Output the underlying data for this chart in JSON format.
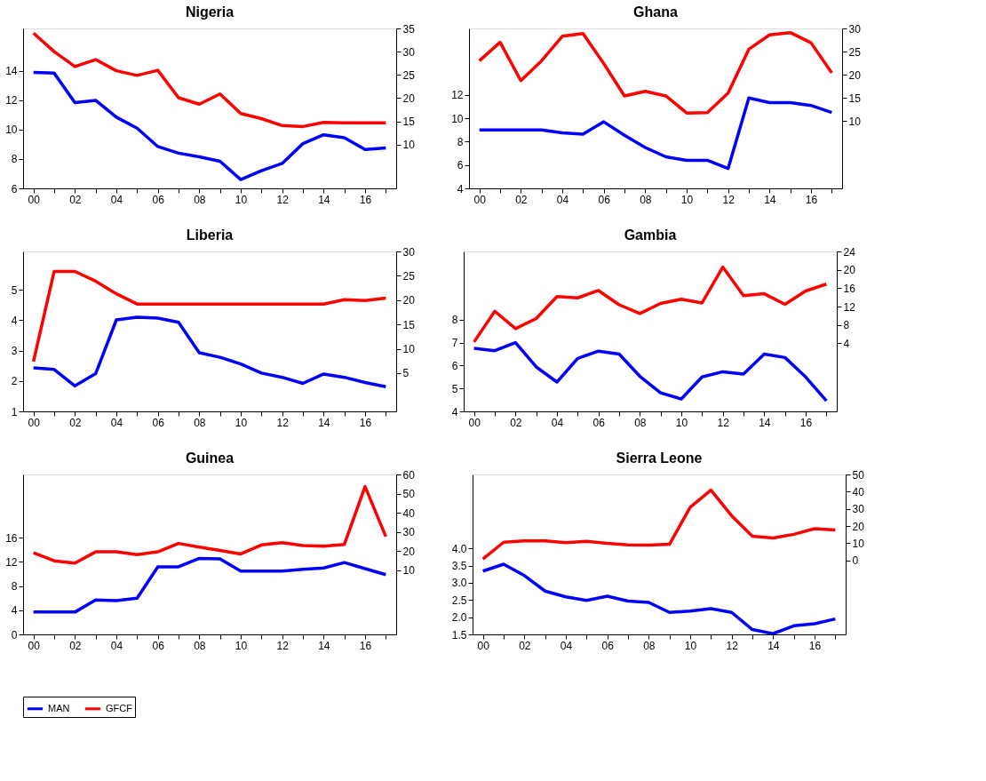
{
  "chart_data": [
    {
      "type": "line",
      "title": "Nigeria",
      "legend": "bottom",
      "grid": false,
      "x": [
        2000,
        2001,
        2002,
        2003,
        2004,
        2005,
        2006,
        2007,
        2008,
        2009,
        2010,
        2011,
        2012,
        2013,
        2014,
        2015,
        2016,
        2017
      ],
      "xlim": [
        1999.5,
        2017.5
      ],
      "xticks": [
        {
          "value": 2000,
          "label": "00"
        },
        {
          "value": 2001,
          "label": null
        },
        {
          "value": 2002,
          "label": "02"
        },
        {
          "value": 2003,
          "label": null
        },
        {
          "value": 2004,
          "label": "04"
        },
        {
          "value": 2005,
          "label": null
        },
        {
          "value": 2006,
          "label": "06"
        },
        {
          "value": 2007,
          "label": null
        },
        {
          "value": 2008,
          "label": "08"
        },
        {
          "value": 2009,
          "label": null
        },
        {
          "value": 2010,
          "label": "10"
        },
        {
          "value": 2011,
          "label": null
        },
        {
          "value": 2012,
          "label": "12"
        },
        {
          "value": 2013,
          "label": null
        },
        {
          "value": 2014,
          "label": "14"
        },
        {
          "value": 2015,
          "label": null
        },
        {
          "value": 2016,
          "label": "16"
        },
        {
          "value": 2017,
          "label": null
        }
      ],
      "ylim": [
        6,
        16.9
      ],
      "yticks": [
        6,
        8,
        10,
        12,
        14
      ],
      "y2lim": [
        0.6,
        35
      ],
      "y2ticks": [
        10,
        15,
        20,
        25,
        30,
        35
      ],
      "series": [
        {
          "name": "MAN",
          "color": "#0000ff",
          "values": [
            13.9,
            13.85,
            11.85,
            12.0,
            10.85,
            10.1,
            8.85,
            8.4,
            8.15,
            7.85,
            6.6,
            7.2,
            7.7,
            9.05,
            9.65,
            9.45,
            8.65,
            8.75
          ]
        },
        {
          "name": "GFCF",
          "color": "#ff0000",
          "axis": "y2",
          "values": [
            34.0,
            30.0,
            26.8,
            28.3,
            25.9,
            24.9,
            26.0,
            20.1,
            18.7,
            20.9,
            16.7,
            15.6,
            14.1,
            13.9,
            14.8,
            14.7,
            14.7,
            14.7
          ]
        }
      ]
    },
    {
      "type": "line",
      "title": "Ghana",
      "legend": "bottom",
      "grid": false,
      "x": [
        2000,
        2001,
        2002,
        2003,
        2004,
        2005,
        2006,
        2007,
        2008,
        2009,
        2010,
        2011,
        2012,
        2013,
        2014,
        2015,
        2016,
        2017
      ],
      "xlim": [
        1999.5,
        2017.5
      ],
      "xticks": [
        {
          "value": 2000,
          "label": "00"
        },
        {
          "value": 2001,
          "label": null
        },
        {
          "value": 2002,
          "label": "02"
        },
        {
          "value": 2003,
          "label": null
        },
        {
          "value": 2004,
          "label": "04"
        },
        {
          "value": 2005,
          "label": null
        },
        {
          "value": 2006,
          "label": "06"
        },
        {
          "value": 2007,
          "label": null
        },
        {
          "value": 2008,
          "label": "08"
        },
        {
          "value": 2009,
          "label": null
        },
        {
          "value": 2010,
          "label": "10"
        },
        {
          "value": 2011,
          "label": null
        },
        {
          "value": 2012,
          "label": "12"
        },
        {
          "value": 2013,
          "label": null
        },
        {
          "value": 2014,
          "label": "14"
        },
        {
          "value": 2015,
          "label": null
        },
        {
          "value": 2016,
          "label": "16"
        },
        {
          "value": 2017,
          "label": null
        }
      ],
      "ylim": [
        4,
        17.7
      ],
      "yticks": [
        4,
        6,
        8,
        10,
        12
      ],
      "y2lim": [
        -4.6,
        30
      ],
      "y2ticks": [
        10,
        15,
        20,
        25,
        30
      ],
      "series": [
        {
          "name": "MAN",
          "color": "#0000ff",
          "values": [
            9.0,
            9.0,
            9.0,
            9.0,
            8.75,
            8.65,
            9.7,
            8.55,
            7.5,
            6.7,
            6.4,
            6.4,
            5.7,
            11.75,
            11.35,
            11.35,
            11.1,
            10.5
          ]
        },
        {
          "name": "GFCF",
          "color": "#ff0000",
          "axis": "y2",
          "values": [
            23.0,
            27.0,
            18.7,
            23.0,
            28.3,
            28.9,
            22.4,
            15.4,
            16.4,
            15.4,
            11.7,
            11.8,
            16.0,
            25.5,
            28.6,
            29.1,
            26.9,
            20.4
          ]
        }
      ]
    },
    {
      "type": "line",
      "title": "Liberia",
      "legend": "bottom",
      "grid": false,
      "x": [
        2000,
        2001,
        2002,
        2003,
        2004,
        2005,
        2006,
        2007,
        2008,
        2009,
        2010,
        2011,
        2012,
        2013,
        2014,
        2015,
        2016,
        2017
      ],
      "xlim": [
        1999.5,
        2017.5
      ],
      "xticks": [
        {
          "value": 2000,
          "label": "00"
        },
        {
          "value": 2001,
          "label": null
        },
        {
          "value": 2002,
          "label": "02"
        },
        {
          "value": 2003,
          "label": null
        },
        {
          "value": 2004,
          "label": "04"
        },
        {
          "value": 2005,
          "label": null
        },
        {
          "value": 2006,
          "label": "06"
        },
        {
          "value": 2007,
          "label": null
        },
        {
          "value": 2008,
          "label": "08"
        },
        {
          "value": 2009,
          "label": null
        },
        {
          "value": 2010,
          "label": "10"
        },
        {
          "value": 2011,
          "label": null
        },
        {
          "value": 2012,
          "label": "12"
        },
        {
          "value": 2013,
          "label": null
        },
        {
          "value": 2014,
          "label": "14"
        },
        {
          "value": 2015,
          "label": null
        },
        {
          "value": 2016,
          "label": "16"
        },
        {
          "value": 2017,
          "label": null
        }
      ],
      "ylim": [
        1,
        6.26
      ],
      "yticks": [
        1,
        2,
        3,
        4,
        5
      ],
      "y2lim": [
        -2.85,
        30
      ],
      "y2ticks": [
        5,
        10,
        15,
        20,
        25,
        30
      ],
      "series": [
        {
          "name": "MAN",
          "color": "#0000ff",
          "values": [
            2.43,
            2.38,
            1.84,
            2.24,
            4.01,
            4.1,
            4.07,
            3.93,
            2.93,
            2.78,
            2.56,
            2.26,
            2.12,
            1.92,
            2.23,
            2.12,
            1.95,
            1.81
          ]
        },
        {
          "name": "GFCF",
          "color": "#ff0000",
          "axis": "y2",
          "values": [
            7.4,
            25.9,
            25.9,
            23.9,
            21.3,
            19.2,
            19.2,
            19.2,
            19.2,
            19.2,
            19.2,
            19.2,
            19.2,
            19.2,
            19.2,
            20.1,
            19.9,
            20.4
          ]
        }
      ]
    },
    {
      "type": "line",
      "title": "Gambia",
      "legend": "bottom",
      "grid": false,
      "x": [
        2000,
        2001,
        2002,
        2003,
        2004,
        2005,
        2006,
        2007,
        2008,
        2009,
        2010,
        2011,
        2012,
        2013,
        2014,
        2015,
        2016,
        2017
      ],
      "xlim": [
        1999.5,
        2017.5
      ],
      "xticks": [
        {
          "value": 2000,
          "label": "00"
        },
        {
          "value": 2001,
          "label": null
        },
        {
          "value": 2002,
          "label": "02"
        },
        {
          "value": 2003,
          "label": null
        },
        {
          "value": 2004,
          "label": "04"
        },
        {
          "value": 2005,
          "label": null
        },
        {
          "value": 2006,
          "label": "06"
        },
        {
          "value": 2007,
          "label": null
        },
        {
          "value": 2008,
          "label": "08"
        },
        {
          "value": 2009,
          "label": null
        },
        {
          "value": 2010,
          "label": "10"
        },
        {
          "value": 2011,
          "label": null
        },
        {
          "value": 2012,
          "label": "12"
        },
        {
          "value": 2013,
          "label": null
        },
        {
          "value": 2014,
          "label": "14"
        },
        {
          "value": 2015,
          "label": null
        },
        {
          "value": 2016,
          "label": "16"
        },
        {
          "value": 2017,
          "label": null
        }
      ],
      "ylim": [
        4,
        10.98
      ],
      "yticks": [
        4,
        5,
        6,
        7,
        8
      ],
      "y2lim": [
        -10.8,
        24
      ],
      "y2ticks": [
        4,
        8,
        12,
        16,
        20,
        24
      ],
      "series": [
        {
          "name": "MAN",
          "color": "#0000ff",
          "values": [
            6.75,
            6.65,
            7.0,
            5.94,
            5.28,
            6.31,
            6.63,
            6.5,
            5.53,
            4.81,
            4.54,
            5.5,
            5.73,
            5.63,
            6.5,
            6.35,
            5.5,
            4.46
          ]
        },
        {
          "name": "GFCF",
          "color": "#ff0000",
          "axis": "y2",
          "values": [
            4.3,
            11.0,
            7.2,
            9.4,
            14.2,
            13.9,
            15.5,
            12.4,
            10.5,
            12.7,
            13.6,
            12.8,
            20.6,
            14.4,
            14.8,
            12.5,
            15.4,
            16.9
          ]
        }
      ]
    },
    {
      "type": "line",
      "title": "Guinea",
      "legend": "bottom",
      "grid": false,
      "x": [
        2000,
        2001,
        2002,
        2003,
        2004,
        2005,
        2006,
        2007,
        2008,
        2009,
        2010,
        2011,
        2012,
        2013,
        2014,
        2015,
        2016,
        2017
      ],
      "xlim": [
        1999.5,
        2017.5
      ],
      "xticks": [
        {
          "value": 2000,
          "label": "00"
        },
        {
          "value": 2001,
          "label": null
        },
        {
          "value": 2002,
          "label": "02"
        },
        {
          "value": 2003,
          "label": null
        },
        {
          "value": 2004,
          "label": "04"
        },
        {
          "value": 2005,
          "label": null
        },
        {
          "value": 2006,
          "label": "06"
        },
        {
          "value": 2007,
          "label": null
        },
        {
          "value": 2008,
          "label": "08"
        },
        {
          "value": 2009,
          "label": null
        },
        {
          "value": 2010,
          "label": "10"
        },
        {
          "value": 2011,
          "label": null
        },
        {
          "value": 2012,
          "label": "12"
        },
        {
          "value": 2013,
          "label": null
        },
        {
          "value": 2014,
          "label": "14"
        },
        {
          "value": 2015,
          "label": null
        },
        {
          "value": 2016,
          "label": "16"
        },
        {
          "value": 2017,
          "label": null
        }
      ],
      "ylim": [
        0,
        26.5
      ],
      "yticks": [
        0,
        4,
        8,
        12,
        16
      ],
      "y2lim": [
        -23.5,
        60
      ],
      "y2ticks": [
        10,
        20,
        30,
        40,
        50,
        60
      ],
      "series": [
        {
          "name": "MAN",
          "color": "#0000ff",
          "values": [
            3.7,
            3.7,
            3.7,
            5.7,
            5.6,
            6.0,
            11.2,
            11.2,
            12.6,
            12.5,
            10.5,
            10.5,
            10.5,
            10.8,
            11.0,
            11.9,
            10.9,
            9.9
          ]
        },
        {
          "name": "GFCF",
          "color": "#ff0000",
          "axis": "y2",
          "values": [
            19.1,
            14.9,
            13.7,
            19.6,
            19.6,
            18.1,
            19.6,
            24.0,
            22.1,
            20.3,
            18.5,
            23.2,
            24.4,
            22.9,
            22.5,
            23.5,
            53.7,
            27.6
          ]
        }
      ]
    },
    {
      "type": "line",
      "title": "Sierra Leone",
      "legend": "bottom",
      "grid": false,
      "x": [
        2000,
        2001,
        2002,
        2003,
        2004,
        2005,
        2006,
        2007,
        2008,
        2009,
        2010,
        2011,
        2012,
        2013,
        2014,
        2015,
        2016,
        2017
      ],
      "xlim": [
        1999.5,
        2017.5
      ],
      "xticks": [
        {
          "value": 2000,
          "label": "00"
        },
        {
          "value": 2001,
          "label": null
        },
        {
          "value": 2002,
          "label": "02"
        },
        {
          "value": 2003,
          "label": null
        },
        {
          "value": 2004,
          "label": "04"
        },
        {
          "value": 2005,
          "label": null
        },
        {
          "value": 2006,
          "label": "06"
        },
        {
          "value": 2007,
          "label": null
        },
        {
          "value": 2008,
          "label": "08"
        },
        {
          "value": 2009,
          "label": null
        },
        {
          "value": 2010,
          "label": "10"
        },
        {
          "value": 2011,
          "label": null
        },
        {
          "value": 2012,
          "label": "12"
        },
        {
          "value": 2013,
          "label": null
        },
        {
          "value": 2014,
          "label": "14"
        },
        {
          "value": 2015,
          "label": null
        },
        {
          "value": 2016,
          "label": "16"
        },
        {
          "value": 2017,
          "label": null
        }
      ],
      "ylim": [
        1.5,
        6.15
      ],
      "yticks": [
        1.5,
        {
          "value": 2,
          "label": "2.0"
        },
        2.5,
        {
          "value": 3,
          "label": "3.0"
        },
        3.5,
        {
          "value": 4,
          "label": "4.0"
        }
      ],
      "y2lim": [
        -43,
        50
      ],
      "y2ticks": [
        0,
        10,
        20,
        30,
        40,
        50
      ],
      "series": [
        {
          "name": "MAN",
          "color": "#0000ff",
          "values": [
            3.34,
            3.54,
            3.21,
            2.76,
            2.59,
            2.49,
            2.61,
            2.47,
            2.43,
            2.14,
            2.18,
            2.25,
            2.14,
            1.64,
            1.52,
            1.75,
            1.81,
            1.95
          ]
        },
        {
          "name": "GFCF",
          "color": "#ff0000",
          "axis": "y2",
          "values": [
            0.8,
            10.6,
            11.4,
            11.4,
            10.3,
            11.1,
            9.9,
            9.1,
            8.9,
            9.4,
            31.0,
            40.9,
            26.0,
            14.1,
            13.1,
            15.2,
            18.5,
            17.7
          ]
        }
      ]
    }
  ]
}
